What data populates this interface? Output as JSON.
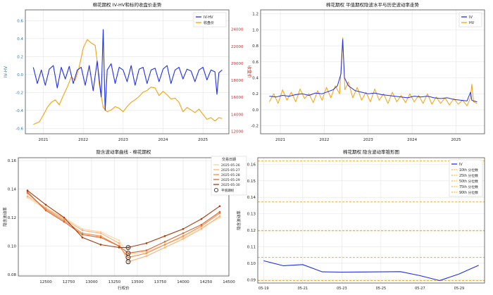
{
  "chart_data": [
    {
      "type": "line",
      "title": "棉花期权 IV-HV和标的收盘价走势",
      "ylabel_left": "IV-HV",
      "ylabel_right": "收盘价",
      "x_ticks": [
        "2021",
        "2022",
        "2023",
        "2024",
        "2025"
      ],
      "ylim_left": [
        -0.66,
        0.72
      ],
      "ylim_right": [
        11700,
        26300
      ],
      "y_ticks_left": [
        -0.6,
        -0.4,
        -0.2,
        0.0,
        0.2,
        0.4,
        0.6
      ],
      "y_ticks_right": [
        12000,
        14000,
        16000,
        18000,
        20000,
        22000,
        24000
      ],
      "grid": true,
      "legend": "top-right",
      "series": [
        {
          "name": "IV-HV",
          "axis": "left",
          "color": "#1f2fe8",
          "x": [
            2020.75,
            2020.85,
            2020.95,
            2021.05,
            2021.15,
            2021.25,
            2021.35,
            2021.45,
            2021.55,
            2021.65,
            2021.75,
            2021.85,
            2021.95,
            2022.05,
            2022.15,
            2022.25,
            2022.35,
            2022.45,
            2022.5,
            2022.55,
            2022.6,
            2022.7,
            2022.8,
            2022.9,
            2023.0,
            2023.1,
            2023.2,
            2023.3,
            2023.4,
            2023.5,
            2023.6,
            2023.7,
            2023.8,
            2023.9,
            2024.0,
            2024.1,
            2024.2,
            2024.3,
            2024.4,
            2024.5,
            2024.6,
            2024.7,
            2024.8,
            2024.9,
            2025.0,
            2025.1,
            2025.2,
            2025.3,
            2025.35,
            2025.4,
            2025.48
          ],
          "values": [
            0.08,
            -0.1,
            0.05,
            -0.12,
            0.06,
            0.1,
            -0.15,
            0.08,
            -0.05,
            0.09,
            -0.1,
            0.05,
            0.08,
            -0.12,
            0.1,
            -0.18,
            0.15,
            -0.25,
            0.5,
            -0.4,
            0.05,
            0.12,
            -0.1,
            0.08,
            0.05,
            -0.08,
            0.1,
            -0.12,
            0.06,
            0.08,
            -0.1,
            0.05,
            0.07,
            -0.08,
            0.06,
            0.1,
            -0.1,
            0.05,
            0.08,
            -0.05,
            0.06,
            0.04,
            -0.08,
            0.05,
            0.08,
            -0.06,
            0.05,
            0.03,
            -0.22,
            0.02,
            0.05
          ]
        },
        {
          "name": "收盘价",
          "axis": "right",
          "color": "#f4a30a",
          "x": [
            2020.75,
            2020.9,
            2021.0,
            2021.1,
            2021.2,
            2021.3,
            2021.4,
            2021.5,
            2021.6,
            2021.7,
            2021.8,
            2021.9,
            2022.0,
            2022.1,
            2022.2,
            2022.3,
            2022.35,
            2022.4,
            2022.5,
            2022.6,
            2022.7,
            2022.8,
            2022.9,
            2023.0,
            2023.1,
            2023.2,
            2023.3,
            2023.4,
            2023.5,
            2023.6,
            2023.7,
            2023.8,
            2023.9,
            2024.0,
            2024.1,
            2024.2,
            2024.3,
            2024.4,
            2024.5,
            2024.6,
            2024.7,
            2024.8,
            2024.9,
            2025.0,
            2025.1,
            2025.2,
            2025.3,
            2025.4,
            2025.48
          ],
          "values": [
            12800,
            13100,
            13900,
            14800,
            15400,
            15700,
            15100,
            16200,
            17200,
            18400,
            18000,
            19600,
            21800,
            22800,
            22400,
            22100,
            20200,
            17600,
            14800,
            14300,
            14500,
            14900,
            14700,
            14300,
            14900,
            15400,
            15700,
            16100,
            16600,
            16800,
            17200,
            17100,
            16200,
            16700,
            16300,
            15800,
            15900,
            15400,
            14300,
            14800,
            14500,
            14200,
            14600,
            14000,
            13400,
            13600,
            13200,
            13600,
            13500
          ]
        }
      ]
    },
    {
      "type": "line",
      "title": "棉花期权 平值期权隐波水平与历史波动率走势",
      "x_ticks": [
        "2021",
        "2022",
        "2023",
        "2024",
        "2025"
      ],
      "ylim": [
        -0.3,
        1.25
      ],
      "y_ticks": [
        -0.2,
        0.0,
        0.2,
        0.4,
        0.6,
        0.8,
        1.0,
        1.2
      ],
      "grid": true,
      "legend": "top-right",
      "series": [
        {
          "name": "IV",
          "color": "#1f2fe8",
          "x": [
            2020.75,
            2020.9,
            2021.05,
            2021.2,
            2021.35,
            2021.5,
            2021.65,
            2021.8,
            2021.95,
            2022.1,
            2022.2,
            2022.3,
            2022.38,
            2022.42,
            2022.46,
            2022.55,
            2022.7,
            2022.85,
            2023.0,
            2023.15,
            2023.3,
            2023.45,
            2023.6,
            2023.75,
            2023.9,
            2024.05,
            2024.2,
            2024.35,
            2024.5,
            2024.65,
            2024.8,
            2024.95,
            2025.1,
            2025.25,
            2025.33,
            2025.36,
            2025.4,
            2025.48
          ],
          "values": [
            0.17,
            0.16,
            0.18,
            0.17,
            0.19,
            0.2,
            0.18,
            0.21,
            0.2,
            0.23,
            0.25,
            0.3,
            0.45,
            0.88,
            0.4,
            0.3,
            0.24,
            0.22,
            0.2,
            0.21,
            0.19,
            0.18,
            0.17,
            0.16,
            0.15,
            0.17,
            0.16,
            0.17,
            0.15,
            0.14,
            0.15,
            0.13,
            0.12,
            0.11,
            0.22,
            0.12,
            0.11,
            0.1
          ]
        },
        {
          "name": "HV",
          "color": "#f4a30a",
          "x": [
            2020.75,
            2020.85,
            2020.95,
            2021.05,
            2021.15,
            2021.25,
            2021.35,
            2021.45,
            2021.55,
            2021.65,
            2021.75,
            2021.85,
            2021.95,
            2022.05,
            2022.15,
            2022.25,
            2022.35,
            2022.42,
            2022.47,
            2022.55,
            2022.65,
            2022.75,
            2022.85,
            2022.95,
            2023.05,
            2023.15,
            2023.25,
            2023.35,
            2023.45,
            2023.55,
            2023.65,
            2023.75,
            2023.85,
            2023.95,
            2024.05,
            2024.15,
            2024.25,
            2024.35,
            2024.45,
            2024.55,
            2024.65,
            2024.75,
            2024.85,
            2024.95,
            2025.05,
            2025.15,
            2025.25,
            2025.33,
            2025.36,
            2025.4,
            2025.48
          ],
          "values": [
            0.1,
            0.2,
            0.08,
            0.25,
            0.12,
            0.22,
            0.1,
            0.26,
            0.14,
            0.2,
            0.09,
            0.24,
            0.12,
            0.28,
            0.15,
            0.3,
            0.2,
            0.9,
            0.25,
            0.35,
            0.15,
            0.28,
            0.12,
            0.22,
            0.1,
            0.26,
            0.12,
            0.2,
            0.08,
            0.22,
            0.1,
            0.18,
            0.09,
            0.2,
            0.1,
            0.18,
            0.08,
            0.2,
            0.07,
            0.16,
            0.08,
            0.15,
            0.06,
            0.14,
            0.07,
            0.12,
            0.05,
            0.15,
            0.32,
            0.1,
            0.08
          ]
        }
      ]
    },
    {
      "type": "line",
      "title": "隐含波动率曲线 - 棉花期权",
      "xlabel": "行权价",
      "ylabel": "隐含波动率",
      "xlim": [
        12200,
        14500
      ],
      "ylim": [
        0.079,
        0.162
      ],
      "x_ticks": [
        12500,
        12750,
        13000,
        13250,
        13500,
        13750,
        14000,
        14250,
        14500
      ],
      "y_ticks": [
        0.08,
        0.1,
        0.12,
        0.14,
        0.16
      ],
      "grid": true,
      "legend_title": "交易日期",
      "legend": "top-right",
      "categories": [
        12300,
        12500,
        12700,
        12900,
        13100,
        13300,
        13400,
        13600,
        13800,
        14000,
        14200,
        14400
      ],
      "series": [
        {
          "name": "2025-05-26",
          "color": "#fcd3a1",
          "values": [
            0.134,
            0.126,
            0.12,
            0.112,
            0.11,
            0.104,
            0.094,
            0.096,
            0.101,
            0.106,
            0.113,
            0.12
          ]
        },
        {
          "name": "2025-05-27",
          "color": "#f9b27a",
          "values": [
            0.135,
            0.127,
            0.119,
            0.111,
            0.109,
            0.102,
            0.089,
            0.093,
            0.099,
            0.105,
            0.112,
            0.121
          ]
        },
        {
          "name": "2025-05-28",
          "color": "#f28a47",
          "values": [
            0.137,
            0.126,
            0.118,
            0.109,
            0.107,
            0.1,
            0.092,
            0.095,
            0.101,
            0.107,
            0.114,
            0.123
          ]
        },
        {
          "name": "2025-05-29",
          "color": "#d9642a",
          "values": [
            0.138,
            0.125,
            0.117,
            0.108,
            0.106,
            0.1,
            0.095,
            0.097,
            0.103,
            0.109,
            0.115,
            0.124
          ]
        },
        {
          "name": "2025-05-30",
          "color": "#a83c0e",
          "values": [
            0.139,
            0.129,
            0.12,
            0.106,
            0.101,
            0.099,
            0.099,
            0.102,
            0.107,
            0.112,
            0.119,
            0.128
          ]
        }
      ],
      "atm_marker": {
        "label": "平值期权",
        "x": 13400,
        "values": [
          0.089,
          0.092,
          0.095,
          0.099
        ]
      }
    },
    {
      "type": "line",
      "title": "棉花期权 隐含波动率锥形图",
      "ylabel": "隐含波动率",
      "x": [
        "05-19",
        "05-20",
        "05-21",
        "05-22",
        "05-23",
        "05-24",
        "05-25",
        "05-26",
        "05-27",
        "05-28",
        "05-29",
        "05-30"
      ],
      "x_ticks": [
        "05-19",
        "05-21",
        "05-23",
        "05-25",
        "05-27",
        "05-29"
      ],
      "ylim": [
        0.088,
        0.164
      ],
      "y_ticks": [
        0.09,
        0.1,
        0.11,
        0.12,
        0.13,
        0.14,
        0.15,
        0.16
      ],
      "grid": true,
      "legend": "top-right",
      "series": [
        {
          "name": "IV",
          "color": "#1f2fe8",
          "values": [
            0.1015,
            0.0985,
            0.0992,
            0.0948,
            0.0946,
            0.0947,
            0.0948,
            0.0949,
            0.0925,
            0.0895,
            0.0935,
            0.0988
          ]
        }
      ],
      "percentile_lines": [
        {
          "name": "10th 分位数",
          "value": 0.0895
        },
        {
          "name": "25th 分位数",
          "value": 0.1035
        },
        {
          "name": "50th 分位数",
          "value": 0.1197
        },
        {
          "name": "75th 分位数",
          "value": 0.1372
        },
        {
          "name": "90th 分位数",
          "value": 0.162
        }
      ],
      "percentile_color": "#f4a30a"
    }
  ]
}
